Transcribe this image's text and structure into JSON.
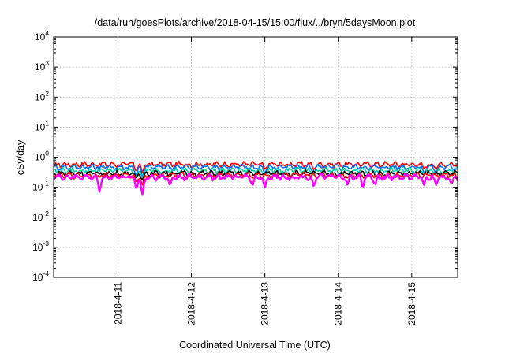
{
  "chart_data": {
    "type": "line",
    "title": "/data/run/goesPlots/archive/2018-04-15/15:00/flux/../bryn/5daysMoon.plot",
    "xlabel": "Coordinated Universal Time (UTC)",
    "ylabel": "cSv/day",
    "yscale": "log",
    "ylim": [
      0.0001,
      10000
    ],
    "y_ticks": [
      {
        "base": "10",
        "exp": "4"
      },
      {
        "base": "10",
        "exp": "3"
      },
      {
        "base": "10",
        "exp": "2"
      },
      {
        "base": "10",
        "exp": "1"
      },
      {
        "base": "10",
        "exp": "0"
      },
      {
        "base": "10",
        "exp": "-1"
      },
      {
        "base": "10",
        "exp": "-2"
      },
      {
        "base": "10",
        "exp": "-3"
      },
      {
        "base": "10",
        "exp": "-4"
      }
    ],
    "x_range_days": [
      "2018-04-10 03:00",
      "2018-04-15 15:00"
    ],
    "x_ticks": [
      "2018-4-11",
      "2018-4-12",
      "2018-4-13",
      "2018-4-14",
      "2018-4-15"
    ],
    "grid": true,
    "series": [
      {
        "color": "#ff0000",
        "level": 0.58,
        "dips": [
          [
            "2018-04-11 06:00",
            0.35
          ],
          [
            "2018-04-11 08:00",
            0.3
          ],
          [
            "2018-04-13 00:00",
            0.4
          ],
          [
            "2018-04-13 16:00",
            0.38
          ],
          [
            "2018-04-15 04:00",
            0.42
          ],
          [
            "2018-04-15 08:00",
            0.4
          ]
        ]
      },
      {
        "color": "#0070ff",
        "level": 0.47,
        "dips": [
          [
            "2018-04-11 06:00",
            0.25
          ],
          [
            "2018-04-11 08:00",
            0.22
          ],
          [
            "2018-04-13 00:00",
            0.3
          ],
          [
            "2018-04-13 16:00",
            0.28
          ],
          [
            "2018-04-15 04:00",
            0.3
          ],
          [
            "2018-04-15 08:00",
            0.3
          ]
        ]
      },
      {
        "color": "#00d0a0",
        "level": 0.36,
        "dips": [
          [
            "2018-04-11 06:00",
            0.22
          ],
          [
            "2018-04-11 08:00",
            0.2
          ],
          [
            "2018-04-13 00:00",
            0.26
          ],
          [
            "2018-04-13 16:00",
            0.25
          ]
        ]
      },
      {
        "color": "#000000",
        "level": 0.29,
        "dips": [
          [
            "2018-04-11 06:00",
            0.2
          ],
          [
            "2018-04-11 08:00",
            0.18
          ]
        ]
      },
      {
        "color": "#ff0000",
        "level": 0.25,
        "dips": [
          [
            "2018-04-11 06:00",
            0.15
          ],
          [
            "2018-04-11 08:00",
            0.12
          ]
        ]
      },
      {
        "color": "#ff00ff",
        "level": 0.22,
        "dips": [
          [
            "2018-04-10 18:00",
            0.07
          ],
          [
            "2018-04-11 06:00",
            0.09
          ],
          [
            "2018-04-11 08:00",
            0.055
          ],
          [
            "2018-04-11 17:00",
            0.12
          ],
          [
            "2018-04-12 20:00",
            0.12
          ],
          [
            "2018-04-13 00:00",
            0.1
          ],
          [
            "2018-04-13 16:00",
            0.11
          ],
          [
            "2018-04-14 03:00",
            0.12
          ],
          [
            "2018-04-14 08:00",
            0.1
          ],
          [
            "2018-04-14 12:00",
            0.12
          ],
          [
            "2018-04-15 04:00",
            0.12
          ],
          [
            "2018-04-15 08:00",
            0.12
          ],
          [
            "2018-04-15 13:00",
            0.13
          ]
        ]
      }
    ]
  }
}
